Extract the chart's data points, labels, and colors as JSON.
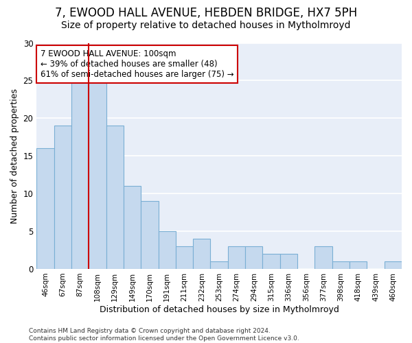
{
  "title1": "7, EWOOD HALL AVENUE, HEBDEN BRIDGE, HX7 5PH",
  "title2": "Size of property relative to detached houses in Mytholmroyd",
  "xlabel": "Distribution of detached houses by size in Mytholmroyd",
  "ylabel": "Number of detached properties",
  "categories": [
    "46sqm",
    "67sqm",
    "87sqm",
    "108sqm",
    "129sqm",
    "149sqm",
    "170sqm",
    "191sqm",
    "211sqm",
    "232sqm",
    "253sqm",
    "274sqm",
    "294sqm",
    "315sqm",
    "336sqm",
    "356sqm",
    "377sqm",
    "398sqm",
    "418sqm",
    "439sqm",
    "460sqm"
  ],
  "values": [
    16,
    19,
    25,
    25,
    19,
    11,
    9,
    5,
    3,
    4,
    1,
    3,
    3,
    2,
    2,
    0,
    3,
    1,
    1,
    0,
    1
  ],
  "bar_color": "#c5d9ee",
  "bar_edge_color": "#7aafd4",
  "vline_x": 2.5,
  "vline_color": "#cc0000",
  "annotation_text": "7 EWOOD HALL AVENUE: 100sqm\n← 39% of detached houses are smaller (48)\n61% of semi-detached houses are larger (75) →",
  "annotation_box_color": "#ffffff",
  "annotation_box_edge": "#cc0000",
  "ylim": [
    0,
    30
  ],
  "yticks": [
    0,
    5,
    10,
    15,
    20,
    25,
    30
  ],
  "background_color": "#ffffff",
  "plot_bg_color": "#e8eef8",
  "footer": "Contains HM Land Registry data © Crown copyright and database right 2024.\nContains public sector information licensed under the Open Government Licence v3.0.",
  "grid_color": "#ffffff",
  "title_fontsize": 12,
  "subtitle_fontsize": 10
}
